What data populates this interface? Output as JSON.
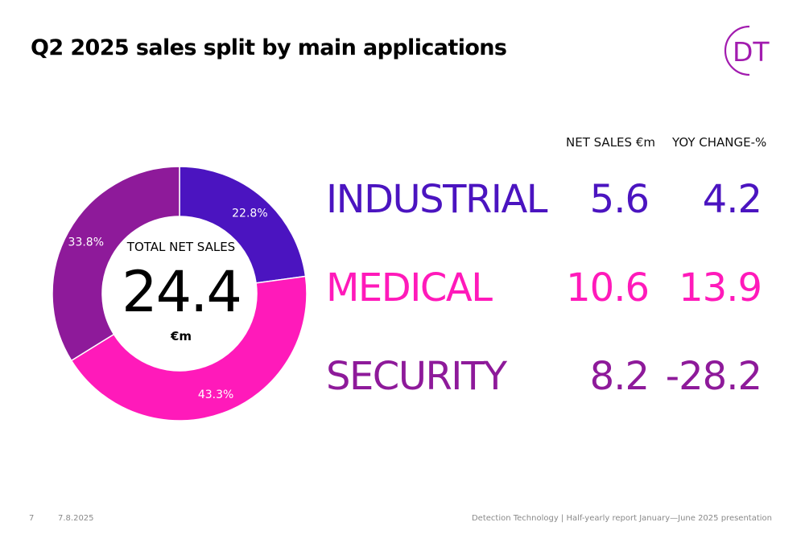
{
  "slide": {
    "title": "Q2 2025 sales split by main applications",
    "logo_text": "DT",
    "page_number": "7",
    "date": "7.8.2025",
    "footer_text": "Detection Technology | Half-yearly report January—June 2025 presentation"
  },
  "colors": {
    "industrial": "#4b14c0",
    "medical": "#ff1aba",
    "security": "#8e1a9a",
    "logo": "#a21caf"
  },
  "chart_data": [
    {
      "type": "pie",
      "variant": "donut",
      "center": {
        "title": "TOTAL NET SALES",
        "value": "24.4",
        "unit": "€m"
      },
      "slices": [
        {
          "label": "Industrial",
          "value": 22.8,
          "display": "22.8%",
          "color": "#4b14c0"
        },
        {
          "label": "Medical",
          "value": 43.3,
          "display": "43.3%",
          "color": "#ff1aba"
        },
        {
          "label": "Security",
          "value": 33.8,
          "display": "33.8%",
          "color": "#8e1a9a"
        }
      ]
    },
    {
      "type": "table",
      "columns": [
        "NET SALES €m",
        "YOY CHANGE-%"
      ],
      "rows": [
        {
          "label": "INDUSTRIAL",
          "net_sales": "5.6",
          "yoy_change": "4.2",
          "color": "#4b14c0"
        },
        {
          "label": "MEDICAL",
          "net_sales": "10.6",
          "yoy_change": "13.9",
          "color": "#ff1aba"
        },
        {
          "label": "SECURITY",
          "net_sales": "8.2",
          "yoy_change": "-28.2",
          "color": "#8e1a9a"
        }
      ]
    }
  ]
}
